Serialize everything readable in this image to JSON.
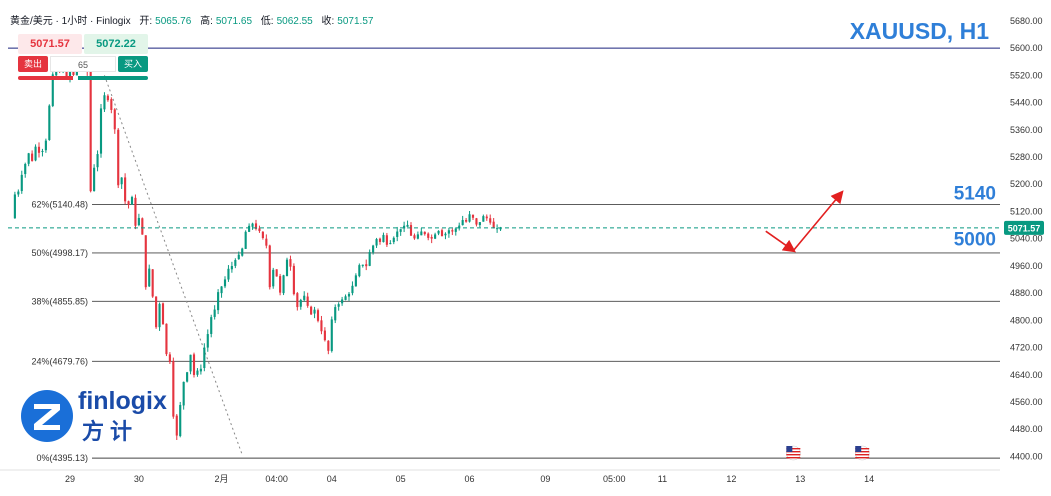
{
  "header": {
    "symbol_desc": "黄金/美元 · 1小时 · Finlogix",
    "open_label": "开:",
    "open": "5065.76",
    "high_label": "高:",
    "high": "5071.65",
    "low_label": "低:",
    "low": "5062.55",
    "close_label": "收:",
    "close": "5071.57"
  },
  "trade_panel": {
    "sell_price": "5071.57",
    "buy_price": "5072.22",
    "sell_label": "卖出",
    "buy_label": "买入",
    "spread": "65",
    "sell_share": 0.42
  },
  "title": "XAUUSD, H1",
  "brand": {
    "name": "finlogix",
    "name_cn": "方计",
    "color": "#1a4ba8"
  },
  "colors": {
    "up": "#089981",
    "down": "#e5343f",
    "accent": "#2f7fd8",
    "arrow": "#e22020",
    "fib_line": "#444444",
    "top_line": "#1a237e"
  },
  "chart_data": {
    "type": "candlestick",
    "ylim": [
      4372,
      5712
    ],
    "y_ticks": [
      4400,
      4480,
      4560,
      4640,
      4720,
      4800,
      4880,
      4960,
      5040,
      5120,
      5200,
      5280,
      5360,
      5440,
      5520,
      5600,
      5680
    ],
    "x_range": [
      0,
      144
    ],
    "x_ticks": [
      {
        "x": 9,
        "label": "29"
      },
      {
        "x": 19,
        "label": "30"
      },
      {
        "x": 31,
        "label": "2月"
      },
      {
        "x": 39,
        "label": "04:00"
      },
      {
        "x": 47,
        "label": "04"
      },
      {
        "x": 57,
        "label": "05"
      },
      {
        "x": 67,
        "label": "06"
      },
      {
        "x": 78,
        "label": "09"
      },
      {
        "x": 88,
        "label": "05:00"
      },
      {
        "x": 95,
        "label": "11"
      },
      {
        "x": 105,
        "label": "12"
      },
      {
        "x": 115,
        "label": "13"
      },
      {
        "x": 125,
        "label": "14"
      }
    ],
    "current_price": 5071.57,
    "current_price_label": "5071.57",
    "top_line": 5600,
    "fib_levels": [
      {
        "label": "62%(5140.48)",
        "price": 5140.48
      },
      {
        "label": "50%(4998.17)",
        "price": 4998.17
      },
      {
        "label": "38%(4855.85)",
        "price": 4855.85
      },
      {
        "label": "24%(4679.76)",
        "price": 4679.76
      },
      {
        "label": "0%(4395.13)",
        "price": 4395.13
      }
    ],
    "fib_trend": {
      "x1": 14,
      "y1": 5520,
      "x2": 34,
      "y2": 4405
    },
    "projection": [
      {
        "x": 110,
        "y": 5062
      },
      {
        "x": 114,
        "y": 5005
      },
      {
        "x": 121,
        "y": 5175
      }
    ],
    "targets": [
      {
        "label": "5140",
        "y": 5175
      },
      {
        "label": "5000",
        "y": 5040
      }
    ],
    "events_x": [
      114,
      124
    ],
    "candles_anchor": {
      "start_x": 1,
      "step": 0.5
    },
    "path": [
      5100,
      5170,
      5180,
      5230,
      5260,
      5290,
      5270,
      5310,
      5295,
      5300,
      5330,
      5430,
      5520,
      5540,
      5530,
      5550,
      5510,
      5540,
      5520,
      5540,
      5550,
      5560,
      5530,
      5180,
      5250,
      5290,
      5420,
      5460,
      5450,
      5420,
      5360,
      5200,
      5220,
      5150,
      5140,
      5160,
      5080,
      5100,
      5050,
      4900,
      4950,
      4870,
      4780,
      4850,
      4790,
      4700,
      4680,
      4520,
      4460,
      4550,
      4620,
      4650,
      4700,
      4640,
      4650,
      4660,
      4720,
      4760,
      4810,
      4830,
      4880,
      4900,
      4920,
      4950,
      4960,
      4980,
      4990,
      5010,
      5060,
      5075,
      5085,
      5070,
      5060,
      5040,
      5020,
      4900,
      4950,
      4930,
      4880,
      4930,
      4980,
      4960,
      4880,
      4840,
      4860,
      4870,
      4840,
      4820,
      4830,
      4800,
      4770,
      4740,
      4710,
      4800,
      4840,
      4850,
      4860,
      4870,
      4880,
      4900,
      4930,
      4960,
      4965,
      4960,
      5000,
      5020,
      5040,
      5030,
      5050,
      5025,
      5030,
      5045,
      5060,
      5070,
      5075,
      5080,
      5050,
      5040,
      5050,
      5060,
      5055,
      5045,
      5040,
      5055,
      5065,
      5050,
      5055,
      5065,
      5060,
      5070,
      5080,
      5095,
      5090,
      5110,
      5100,
      5080,
      5090,
      5105,
      5100,
      5090,
      5070,
      5068,
      5072
    ]
  }
}
